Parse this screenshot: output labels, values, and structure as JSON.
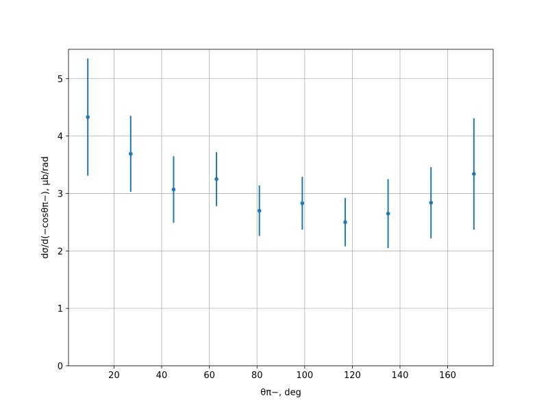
{
  "chart_data": {
    "type": "errorbar",
    "x_label": "θπ−, deg",
    "y_label": "dσ/d(−cosθπ−), μb/rad",
    "x": [
      9,
      27,
      45,
      63,
      81,
      99,
      117,
      135,
      153,
      171
    ],
    "series": [
      {
        "color": "#1f77b4",
        "values": [
          4.33,
          3.69,
          3.07,
          3.25,
          2.7,
          2.83,
          2.5,
          2.65,
          2.84,
          3.34
        ],
        "errors": [
          1.02,
          0.66,
          0.58,
          0.47,
          0.44,
          0.46,
          0.42,
          0.6,
          0.62,
          0.97
        ]
      }
    ],
    "xlim": [
      0.9,
      179.1
    ],
    "ylim": [
      0,
      5.51
    ],
    "xticks": [
      20,
      40,
      60,
      80,
      100,
      120,
      140,
      160
    ],
    "yticks": [
      0,
      1,
      2,
      3,
      4,
      5
    ],
    "grid": true
  }
}
